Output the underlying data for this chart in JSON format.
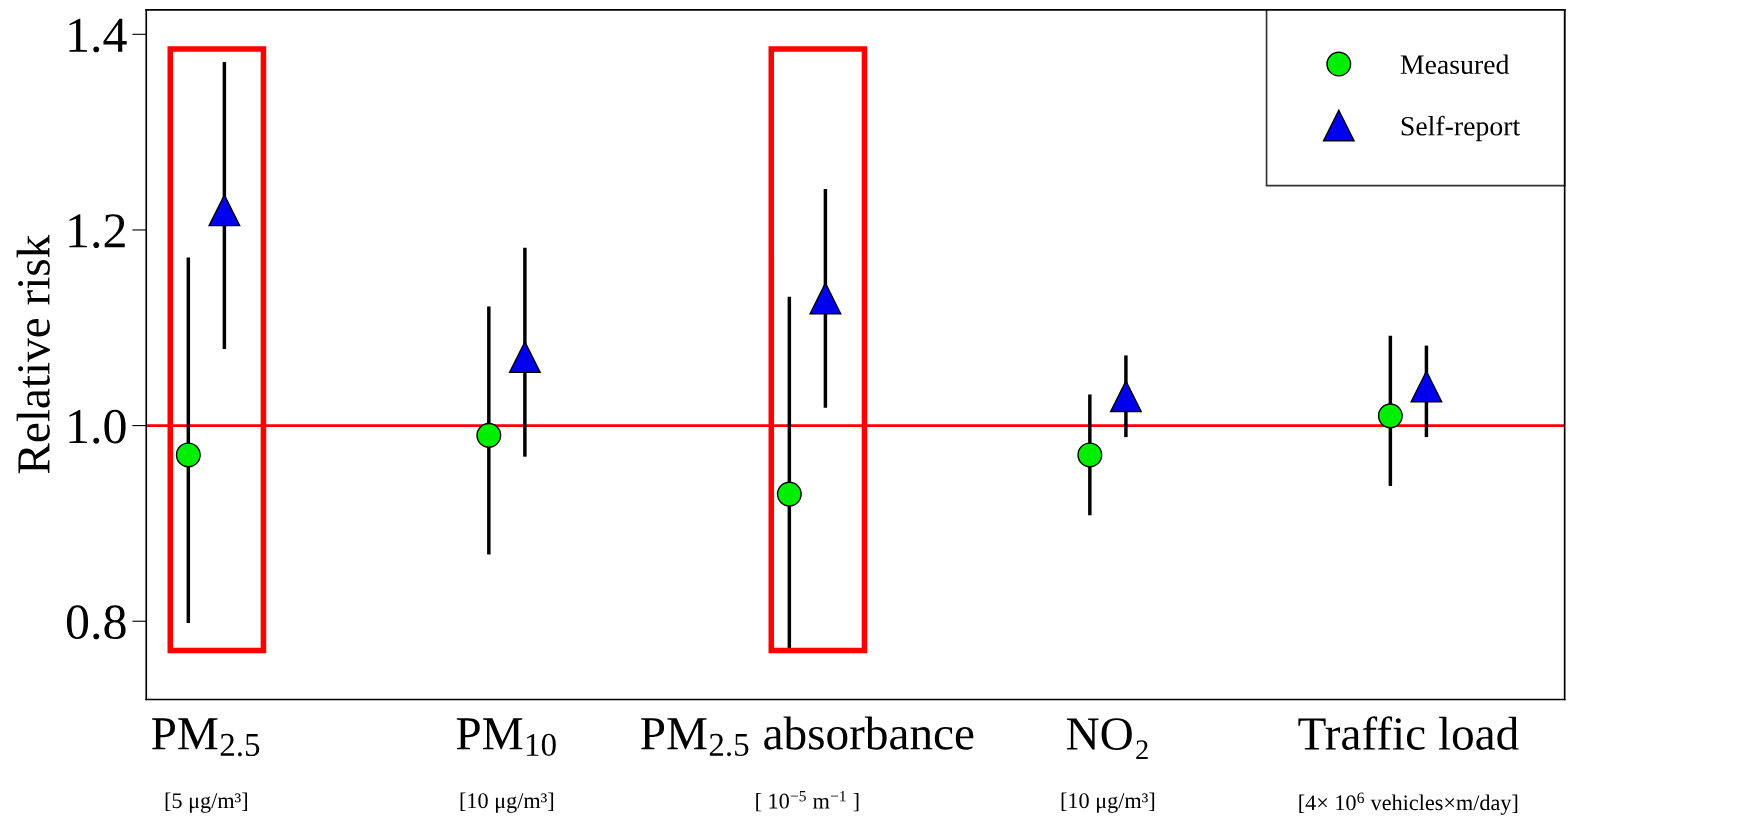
{
  "chart_data": {
    "type": "scatter",
    "ylabel": "Relative risk",
    "categories": [
      "PM$_{2.5}$",
      "PM$_{10}$",
      "PM$_{2.5}$ absorbance",
      "NO₂",
      "Traffic load"
    ],
    "series": [
      {
        "name": "Measured",
        "color": "#00ee00",
        "marker": "circle",
        "values": [
          0.97,
          0.99,
          0.93,
          0.97,
          1.01
        ],
        "errors": [
          [
            0.8,
            1.17
          ],
          [
            0.87,
            1.12
          ],
          [
            0.77,
            1.13
          ],
          [
            0.91,
            1.03
          ],
          [
            0.94,
            1.09
          ]
        ]
      },
      {
        "name": "Self-report",
        "color": "#0000ee",
        "marker": "triangle",
        "values": [
          1.22,
          1.07,
          1.13,
          1.03,
          1.04
        ],
        "errors": [
          [
            1.08,
            1.37
          ],
          [
            0.97,
            1.18
          ],
          [
            1.02,
            1.24
          ],
          [
            0.99,
            1.07
          ],
          [
            0.99,
            1.08
          ]
        ]
      }
    ],
    "ylim": [
      0.72,
      1.425
    ],
    "yticks": [
      0.8,
      {
        "value": 1.0,
        "label": "1.0"
      },
      1.2,
      1.4
    ],
    "ref_lines": [
      {
        "axis": "y",
        "value": 1.0,
        "color": "#ff0000"
      }
    ],
    "annotations": [
      "[5 μg/m³]",
      "[10 μg/m³]",
      "[ 10$^{−5}$ m$^{−1}$ ]",
      "[10 μg/m³]",
      "[4× 10$^{6}$ vehicles×m/day]"
    ],
    "grid": false,
    "legend": "top right"
  }
}
